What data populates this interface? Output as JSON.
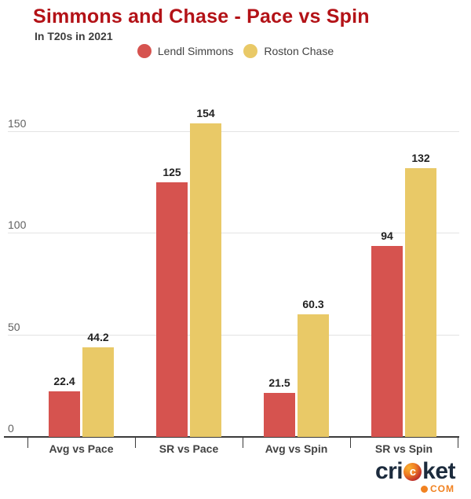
{
  "header": {
    "title": "Simmons and Chase - Pace vs Spin",
    "subtitle": "In T20s in 2021"
  },
  "legend": [
    {
      "label": "Lendl Simmons",
      "color": "#d6534f"
    },
    {
      "label": "Roston Chase",
      "color": "#e9c967"
    }
  ],
  "chart_data": {
    "type": "bar",
    "title": "Simmons and Chase - Pace vs Spin",
    "subtitle": "In T20s in 2021",
    "categories": [
      "Avg vs Pace",
      "SR vs Pace",
      "Avg vs Spin",
      "SR vs Spin"
    ],
    "series": [
      {
        "name": "Lendl Simmons",
        "color": "#d6534f",
        "values": [
          22.4,
          125,
          21.5,
          94
        ],
        "labels": [
          "22.4",
          "125",
          "21.5",
          "94"
        ]
      },
      {
        "name": "Roston Chase",
        "color": "#e9c967",
        "values": [
          44.2,
          154,
          60.3,
          132
        ],
        "labels": [
          "44.2",
          "154",
          "60.3",
          "132"
        ]
      }
    ],
    "ylim": [
      0,
      161
    ],
    "yticks": [
      0,
      50,
      100,
      150
    ],
    "grid": true,
    "legend_position": "top",
    "title_color": "#b31217"
  },
  "branding": {
    "word_pre": "cri",
    "ball_letter": "c",
    "word_post": "ket",
    "tld": "COM",
    "text_color": "#1c2b3d",
    "accent_color": "#f18221"
  }
}
